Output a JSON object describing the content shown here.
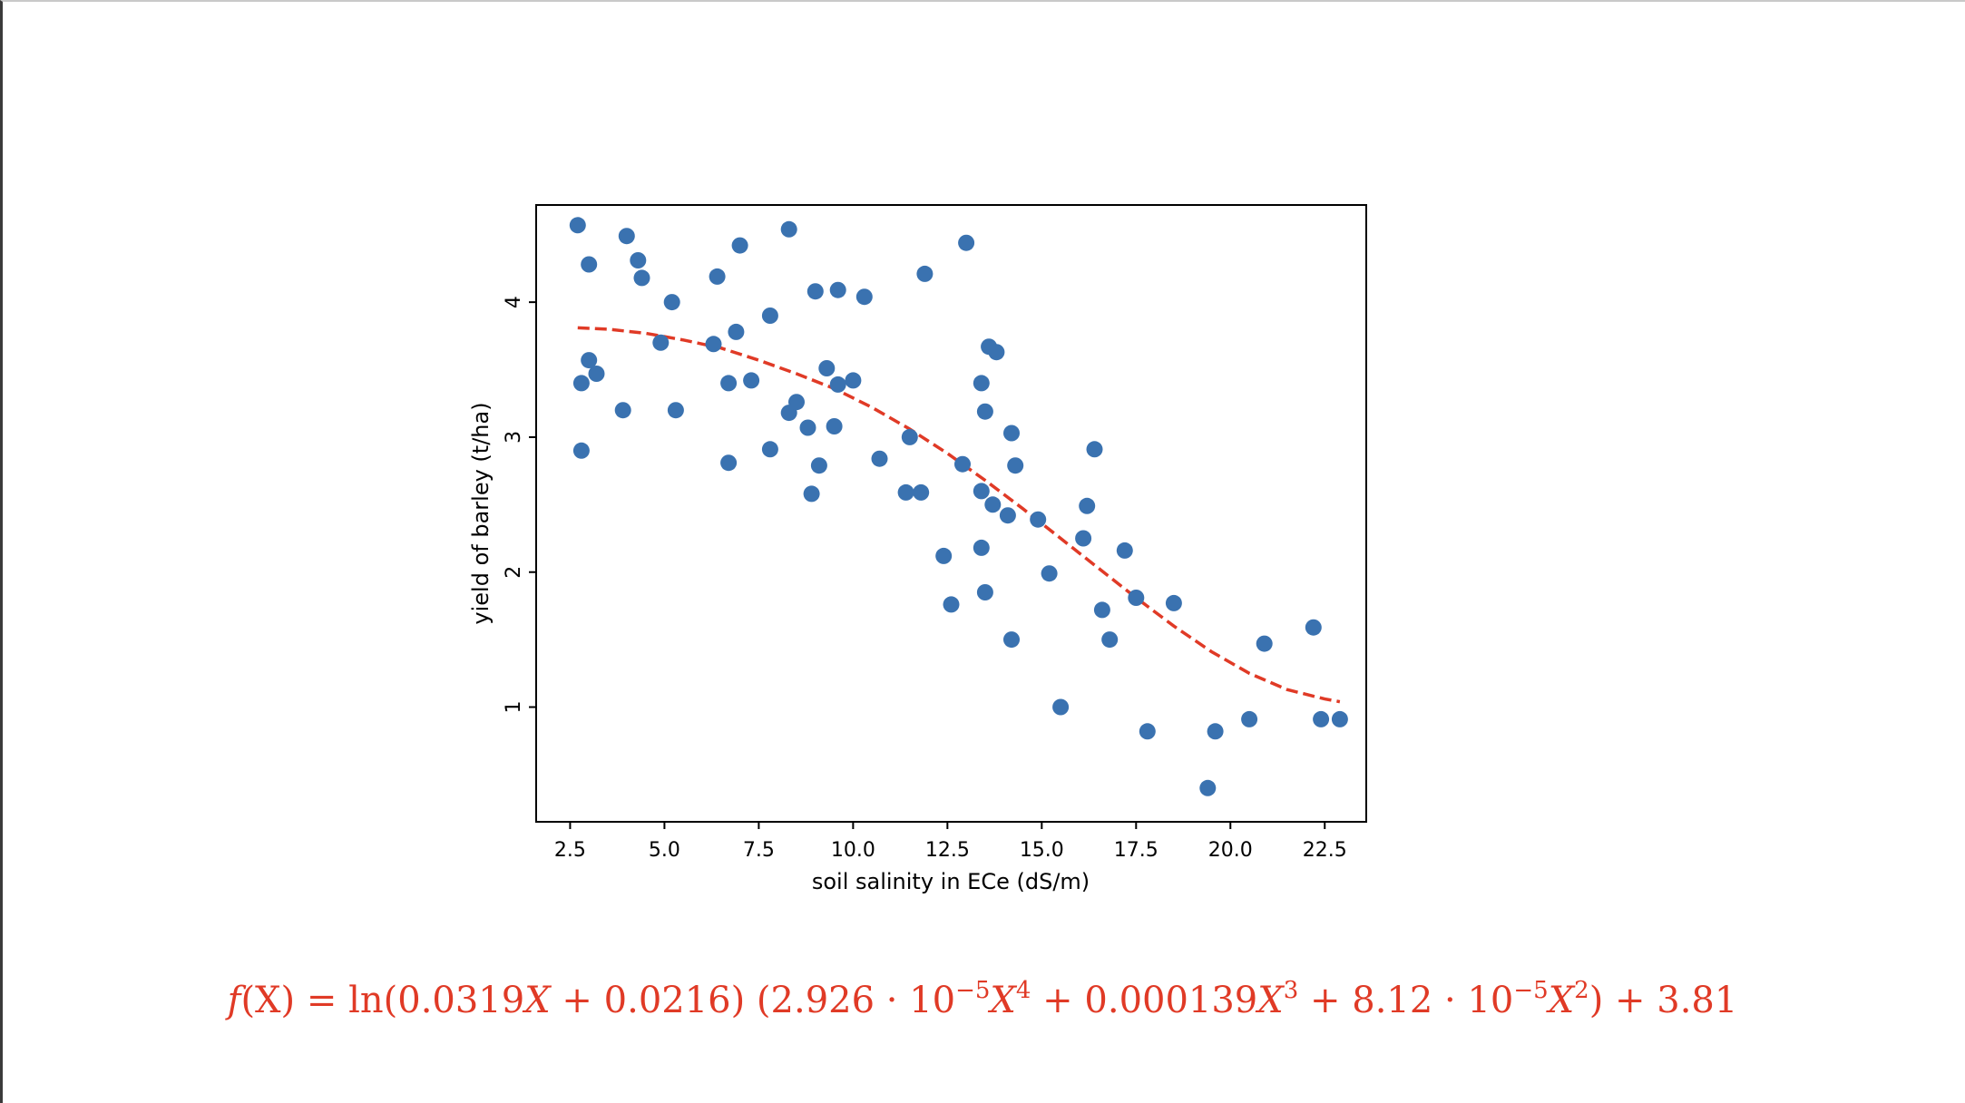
{
  "chart_data": {
    "type": "scatter",
    "title": "",
    "xlabel": "soil salinity in ECe (dS/m)",
    "ylabel": "yield of barley (t/ha)",
    "xlim": [
      1.6,
      23.6
    ],
    "ylim": [
      0.15,
      4.72
    ],
    "x_ticks": [
      2.5,
      5.0,
      7.5,
      10.0,
      12.5,
      15.0,
      17.5,
      20.0,
      22.5
    ],
    "x_tick_labels": [
      "2.5",
      "5.0",
      "7.5",
      "10.0",
      "12.5",
      "15.0",
      "17.5",
      "20.0",
      "22.5"
    ],
    "y_ticks": [
      1,
      2,
      3,
      4
    ],
    "y_tick_labels": [
      "1",
      "2",
      "3",
      "4"
    ],
    "grid": false,
    "legend": "none",
    "point_color": "#3a72b0",
    "fit_color": "#e03a26",
    "series": [
      {
        "type": "scatter",
        "x": [
          2.7,
          2.8,
          2.8,
          3.0,
          3.0,
          3.2,
          3.9,
          4.0,
          4.3,
          4.4,
          4.9,
          5.2,
          5.3,
          6.3,
          6.4,
          6.7,
          6.7,
          6.9,
          7.0,
          7.3,
          7.8,
          7.8,
          8.3,
          8.3,
          8.5,
          8.8,
          8.9,
          9.0,
          9.1,
          9.3,
          9.5,
          9.6,
          9.6,
          10.0,
          10.3,
          10.7,
          11.4,
          11.5,
          11.8,
          11.9,
          12.4,
          12.6,
          12.9,
          13.0,
          13.4,
          13.4,
          13.4,
          13.5,
          13.5,
          13.6,
          13.7,
          13.8,
          14.1,
          14.2,
          14.2,
          14.3,
          14.9,
          15.2,
          15.5,
          16.1,
          16.2,
          16.4,
          16.6,
          16.8,
          17.2,
          17.5,
          17.8,
          18.5,
          19.4,
          19.6,
          20.5,
          20.9,
          22.2,
          22.4,
          22.9
        ],
        "y": [
          4.57,
          3.4,
          2.9,
          4.28,
          3.57,
          3.47,
          3.2,
          4.49,
          4.31,
          4.18,
          3.7,
          4.0,
          3.2,
          3.69,
          4.19,
          3.4,
          2.81,
          3.78,
          4.42,
          3.42,
          2.91,
          3.9,
          4.54,
          3.18,
          3.26,
          3.07,
          2.58,
          4.08,
          2.79,
          3.51,
          3.08,
          3.39,
          4.09,
          3.42,
          4.04,
          2.84,
          2.59,
          3.0,
          2.59,
          4.21,
          2.12,
          1.76,
          2.8,
          4.44,
          3.4,
          2.6,
          2.18,
          1.85,
          3.19,
          3.67,
          2.5,
          3.63,
          2.42,
          1.5,
          3.03,
          2.79,
          2.39,
          1.99,
          1.0,
          2.25,
          2.49,
          2.91,
          1.72,
          1.5,
          2.16,
          1.81,
          0.82,
          1.77,
          0.4,
          0.82,
          0.91,
          1.47,
          1.59,
          0.91,
          0.91
        ]
      },
      {
        "type": "line",
        "style": "dashed",
        "x": [
          2.7,
          3.5,
          4.5,
          5.5,
          6.5,
          7.5,
          8.5,
          9.5,
          10.5,
          11.5,
          12.5,
          13.5,
          14.5,
          15.5,
          16.5,
          17.5,
          18.5,
          19.5,
          20.5,
          21.5,
          22.5,
          22.9
        ],
        "y": [
          3.81,
          3.8,
          3.77,
          3.72,
          3.66,
          3.57,
          3.47,
          3.36,
          3.22,
          3.06,
          2.88,
          2.68,
          2.47,
          2.25,
          2.03,
          1.81,
          1.6,
          1.41,
          1.25,
          1.13,
          1.06,
          1.04
        ]
      }
    ]
  },
  "formula": {
    "f": "f",
    "x_var": "(X)",
    "eq": " = ln(0.0319",
    "X1": "X",
    "part2": " + 0.0216) (2.926 · 10",
    "exp1": "−5",
    "X2": "X",
    "exp2": "4",
    "part3": " + 0.000139",
    "X3": "X",
    "exp3": "3",
    "part4": " + 8.12 · 10",
    "exp4": "−5",
    "X4": "X",
    "exp5": "2",
    "part5": ") + 3.81"
  }
}
